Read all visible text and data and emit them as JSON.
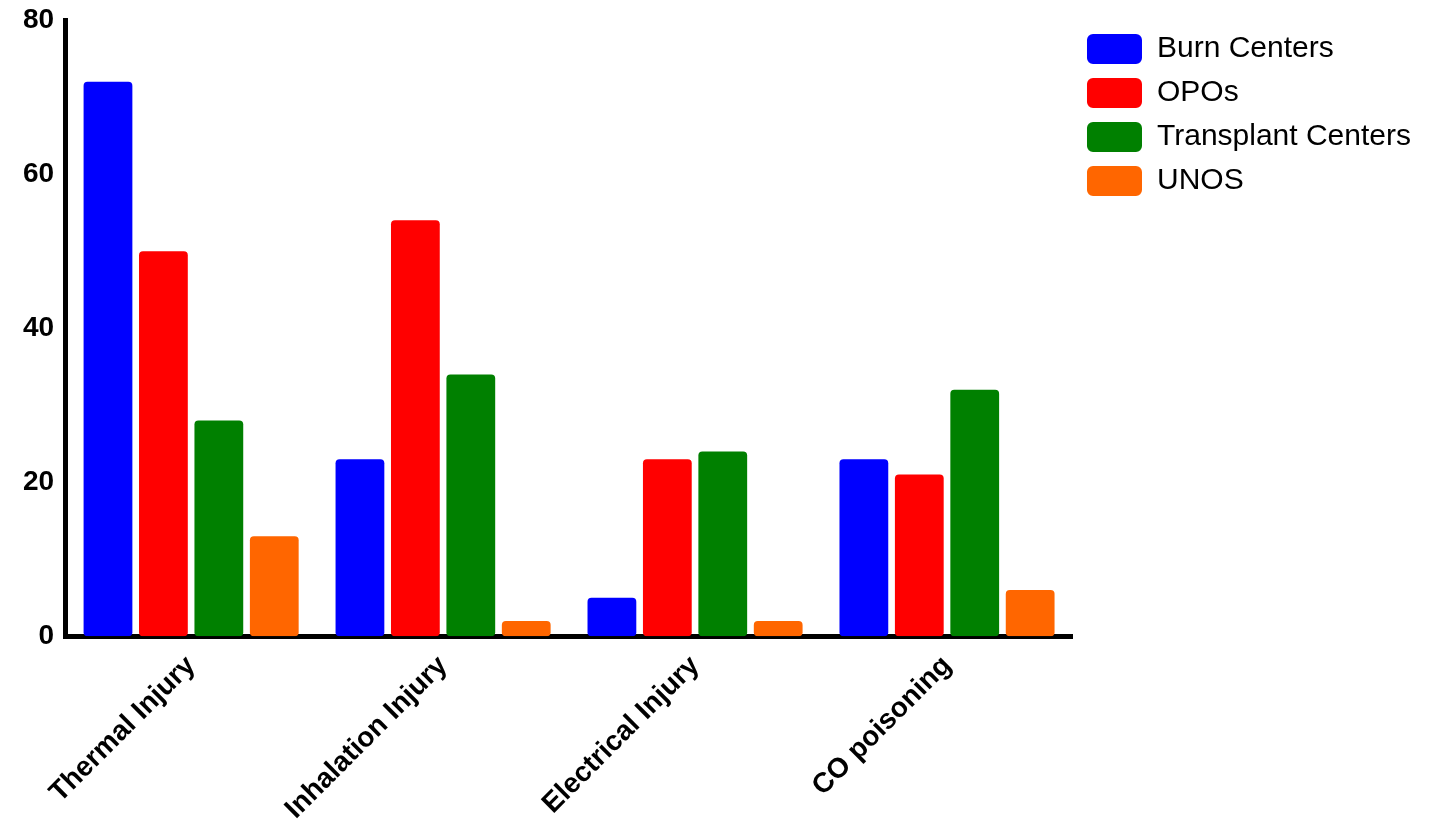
{
  "chart_data": {
    "type": "bar",
    "categories": [
      "Thermal Injury",
      "Inhalation Injury",
      "Electrical Injury",
      "CO poisoning"
    ],
    "series": [
      {
        "name": "Burn Centers",
        "color": "#0000ff",
        "values": [
          72,
          23,
          5,
          23
        ]
      },
      {
        "name": "OPOs",
        "color": "#ff0000",
        "values": [
          50,
          54,
          23,
          21
        ]
      },
      {
        "name": "Transplant Centers",
        "color": "#008000",
        "values": [
          28,
          34,
          24,
          32
        ]
      },
      {
        "name": "UNOS",
        "color": "#ff6600",
        "values": [
          13,
          2,
          2,
          6
        ]
      }
    ],
    "ylim": [
      0,
      80
    ],
    "yticks": [
      0,
      20,
      40,
      60,
      80
    ],
    "grid": false,
    "legend": "top right"
  }
}
